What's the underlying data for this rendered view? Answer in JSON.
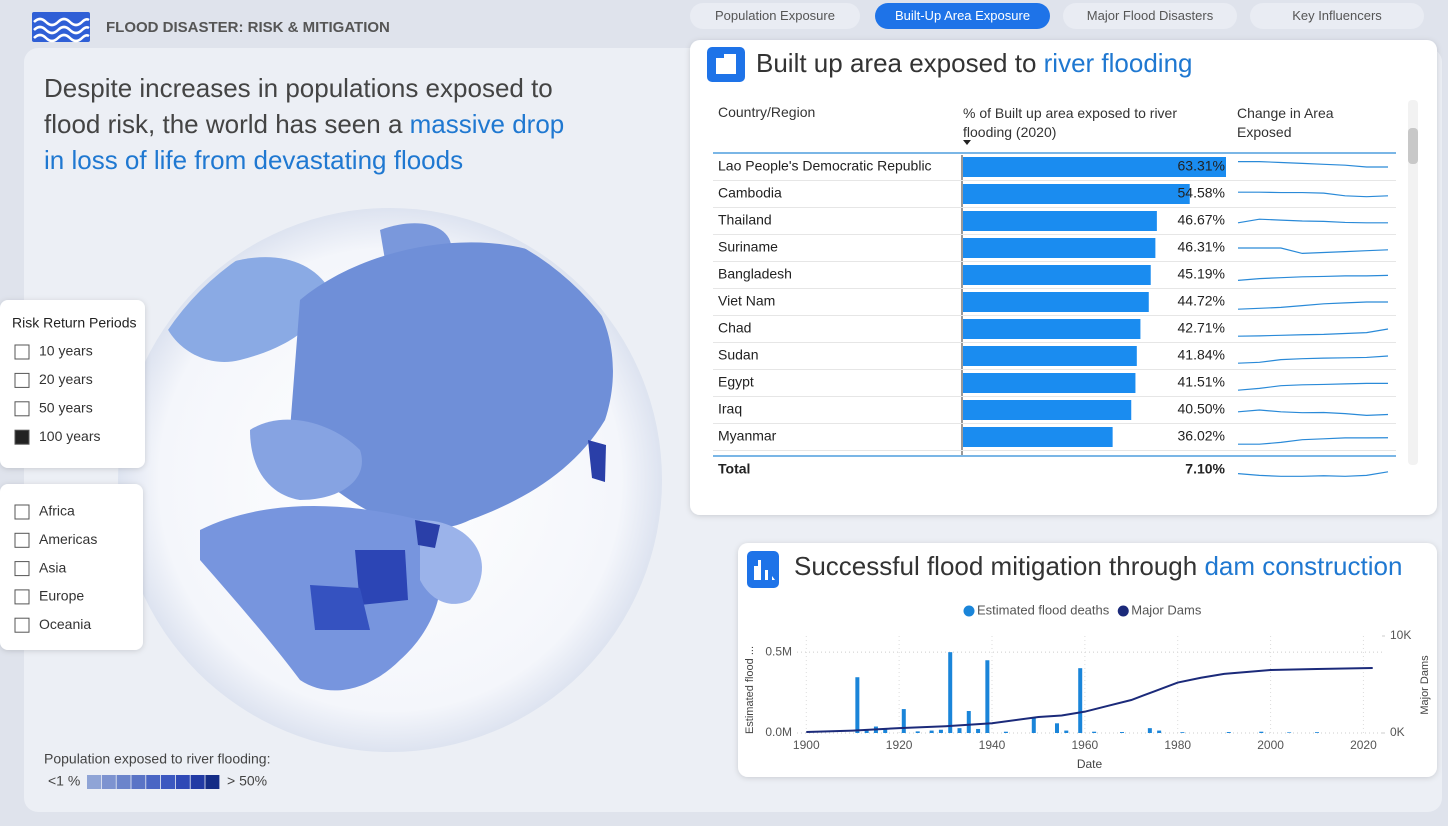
{
  "header": {
    "title": "FLOOD DISASTER: RISK & MITIGATION"
  },
  "tabs": {
    "items": [
      "Population Exposure",
      "Built-Up Area Exposure",
      "Major Flood Disasters",
      "Key Influencers"
    ],
    "active": 1
  },
  "headline": {
    "text": "Despite increases in populations exposed to flood risk, the world has seen a ",
    "highlight": "massive drop in loss of life from devastating floods"
  },
  "filters": {
    "risk": {
      "title": "Risk Return Periods",
      "options": [
        "10 years",
        "20 years",
        "50 years",
        "100 years"
      ],
      "selected": 3
    },
    "region": {
      "options": [
        "Africa",
        "Americas",
        "Asia",
        "Europe",
        "Oceania"
      ]
    }
  },
  "map_legend": {
    "title": "Population exposed to river flooding:",
    "low": "<1 %",
    "high": "> 50%",
    "colors": [
      "#8fa4d6",
      "#7d93d0",
      "#6b84cb",
      "#5a74c6",
      "#4a66c4",
      "#3c58c0",
      "#2f49b6",
      "#213aa4",
      "#142c86"
    ]
  },
  "table": {
    "title": "Built up area exposed to ",
    "title_highlight": "river flooding",
    "columns": [
      "Country/Region",
      "% of Built up area exposed to river flooding (2020)",
      "Change in Area Exposed"
    ],
    "bar_color": "#1a8cf0",
    "rows": [
      {
        "name": "Lao People's Democratic Republic",
        "value": 63.31,
        "value_label": "63.31%",
        "trend": [
          8,
          8,
          7.5,
          7,
          6.5,
          6,
          5,
          5
        ]
      },
      {
        "name": "Cambodia",
        "value": 54.58,
        "value_label": "54.58%",
        "trend": [
          6,
          6,
          5.8,
          5.8,
          5.5,
          4,
          3.5,
          4
        ]
      },
      {
        "name": "Thailand",
        "value": 46.67,
        "value_label": "46.67%",
        "trend": [
          4,
          6,
          5.5,
          5,
          4.8,
          4.2,
          4,
          4
        ]
      },
      {
        "name": "Suriname",
        "value": 46.31,
        "value_label": "46.31%",
        "trend": [
          5,
          5,
          5,
          2,
          2.5,
          3,
          3.5,
          4
        ]
      },
      {
        "name": "Bangladesh",
        "value": 45.19,
        "value_label": "45.19%",
        "trend": [
          2,
          3,
          3.5,
          4,
          4.2,
          4.5,
          4.5,
          4.8
        ]
      },
      {
        "name": "Viet Nam",
        "value": 44.72,
        "value_label": "44.72%",
        "trend": [
          1,
          1.5,
          2,
          3,
          4,
          4.5,
          5,
          5
        ]
      },
      {
        "name": "Chad",
        "value": 42.71,
        "value_label": "42.71%",
        "trend": [
          1,
          1.2,
          1.5,
          1.8,
          2,
          2.5,
          3,
          5
        ]
      },
      {
        "name": "Sudan",
        "value": 41.84,
        "value_label": "41.84%",
        "trend": [
          1,
          1.5,
          3,
          3.5,
          3.8,
          4,
          4.2,
          5
        ]
      },
      {
        "name": "Egypt",
        "value": 41.51,
        "value_label": "41.51%",
        "trend": [
          1,
          2,
          3.5,
          4,
          4.2,
          4.5,
          4.8,
          4.8
        ]
      },
      {
        "name": "Iraq",
        "value": 40.5,
        "value_label": "40.50%",
        "trend": [
          4,
          5,
          4,
          3.5,
          3.6,
          3,
          2,
          2.5
        ]
      },
      {
        "name": "Myanmar",
        "value": 36.02,
        "value_label": "36.02%",
        "trend": [
          1,
          1,
          2,
          3.5,
          4,
          4.5,
          4.5,
          4.6
        ]
      }
    ],
    "total": {
      "name": "Total",
      "value": 7.1,
      "value_label": "7.10%",
      "trend": [
        3,
        2,
        1.5,
        1.5,
        1.8,
        1.5,
        2,
        4
      ]
    }
  },
  "chart_data": {
    "type": "combo",
    "title": "Successful flood mitigation through ",
    "title_highlight": "dam construction",
    "xlabel": "Date",
    "ylabel": "Estimated flood ...",
    "y2label": "Major Dams",
    "xlim": [
      1898,
      2024
    ],
    "xticks": [
      1900,
      1920,
      1940,
      1960,
      1980,
      2000,
      2020
    ],
    "ylim": [
      0,
      600000
    ],
    "yticks": [
      {
        "value": 0,
        "label": "0.0M"
      },
      {
        "value": 500000,
        "label": "0.5M"
      }
    ],
    "y2lim": [
      0,
      10000
    ],
    "y2ticks": [
      {
        "value": 0,
        "label": "0K"
      },
      {
        "value": 10000,
        "label": "10K"
      }
    ],
    "grid": true,
    "series": [
      {
        "name": "Estimated flood deaths",
        "color": "#1a85d9",
        "kind": "bar",
        "x": [
          1911,
          1913,
          1915,
          1917,
          1921,
          1924,
          1927,
          1929,
          1931,
          1933,
          1935,
          1937,
          1939,
          1943,
          1949,
          1954,
          1956,
          1959,
          1962,
          1968,
          1974,
          1976,
          1981,
          1991,
          1998,
          2004,
          2010
        ],
        "values": [
          345000,
          15000,
          40000,
          30000,
          148000,
          10000,
          15000,
          20000,
          500000,
          30000,
          136000,
          25000,
          450000,
          8000,
          93000,
          60000,
          15000,
          401000,
          8000,
          6000,
          30000,
          15000,
          5000,
          6000,
          8000,
          4000,
          5000
        ]
      },
      {
        "name": "Major Dams",
        "color": "#1b2a7a",
        "kind": "line",
        "axis": "y2",
        "x": [
          1900,
          1910,
          1920,
          1930,
          1940,
          1950,
          1955,
          1960,
          1965,
          1970,
          1975,
          1980,
          1985,
          1990,
          2000,
          2010,
          2022
        ],
        "values": [
          100,
          250,
          500,
          700,
          1000,
          1650,
          1800,
          2200,
          2800,
          3400,
          4300,
          5200,
          5700,
          6100,
          6500,
          6600,
          6700
        ]
      }
    ]
  }
}
